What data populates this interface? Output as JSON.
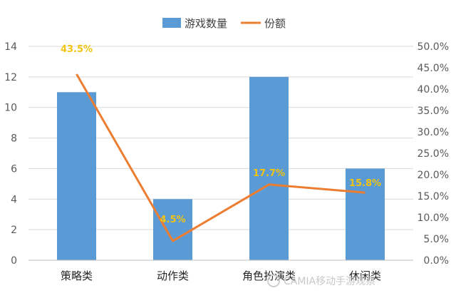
{
  "chart_data": {
    "type": "bar+line",
    "categories": [
      "策略类",
      "动作类",
      "角色扮演类",
      "休闲类"
    ],
    "category_labels_visible": [
      "策略类",
      "动作类",
      "角色扮演类",
      "休闲类"
    ],
    "series": [
      {
        "name": "游戏数量",
        "type": "bar",
        "axis": "left",
        "values": [
          11,
          4,
          12,
          6
        ],
        "color": "#5B9BD5"
      },
      {
        "name": "份额",
        "type": "line",
        "axis": "right",
        "values": [
          43.5,
          4.5,
          17.7,
          15.8
        ],
        "color": "#ED7D31"
      }
    ],
    "data_labels": [
      "43.5%",
      "4.5%",
      "17.7%",
      "15.8%"
    ],
    "data_label_color": "#F2C40F",
    "y_left": {
      "min": 0,
      "max": 14,
      "ticks": [
        "0",
        "2",
        "4",
        "6",
        "8",
        "10",
        "12",
        "14"
      ]
    },
    "y_right": {
      "min": 0,
      "max": 50,
      "ticks": [
        "0.0%",
        "5.0%",
        "10.0%",
        "15.0%",
        "20.0%",
        "25.0%",
        "30.0%",
        "35.0%",
        "40.0%",
        "45.0%",
        "50.0%"
      ]
    },
    "legend": {
      "position": "top",
      "items": [
        "游戏数量",
        "份额"
      ]
    },
    "grid": true,
    "gridline_color": "#D9D9D9"
  },
  "watermark": "CAMIA移动手游观察"
}
